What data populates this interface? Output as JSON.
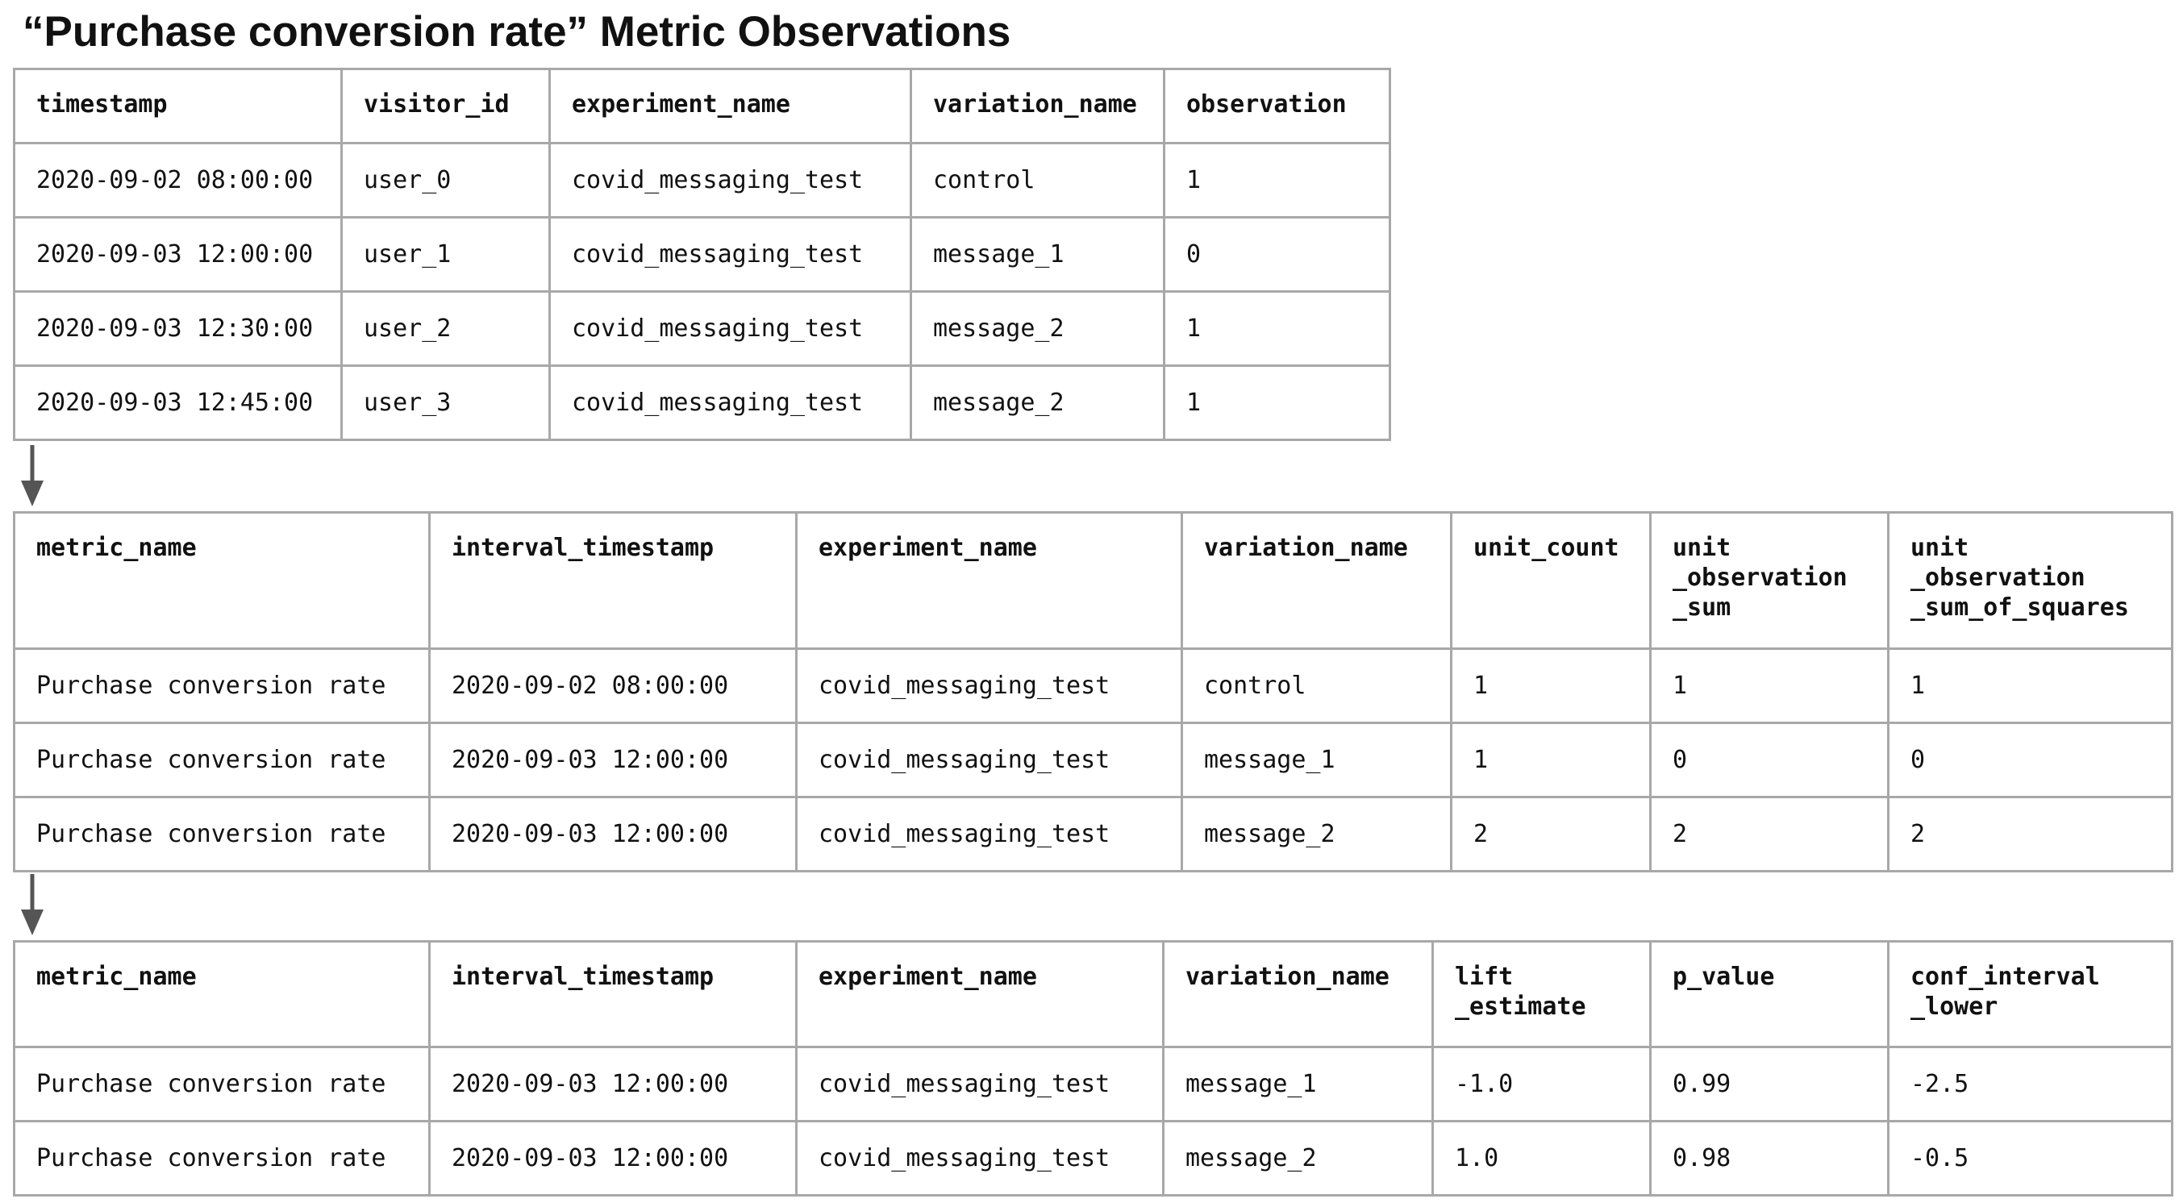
{
  "title": "“Purchase conversion rate” Metric Observations",
  "colors": {
    "border": "#a8a8a8",
    "arrow": "#555555",
    "text": "#111111"
  },
  "icons": [
    "down-arrow-icon"
  ],
  "observations_table": {
    "columns": [
      "timestamp",
      "visitor_id",
      "experiment_name",
      "variation_name",
      "observation"
    ],
    "rows": [
      [
        "2020-09-02 08:00:00",
        "user_0",
        "covid_messaging_test",
        "control",
        "1"
      ],
      [
        "2020-09-03 12:00:00",
        "user_1",
        "covid_messaging_test",
        "message_1",
        "0"
      ],
      [
        "2020-09-03 12:30:00",
        "user_2",
        "covid_messaging_test",
        "message_2",
        "1"
      ],
      [
        "2020-09-03 12:45:00",
        "user_3",
        "covid_messaging_test",
        "message_2",
        "1"
      ]
    ]
  },
  "aggregates_table": {
    "columns": [
      "metric_name",
      "interval_timestamp",
      "experiment_name",
      "variation_name",
      "unit_count",
      "unit\n_observation\n_sum",
      "unit\n_observation\n_sum_of_squares"
    ],
    "rows": [
      [
        "Purchase conversion rate",
        "2020-09-02 08:00:00",
        "covid_messaging_test",
        "control",
        "1",
        "1",
        "1"
      ],
      [
        "Purchase conversion rate",
        "2020-09-03 12:00:00",
        "covid_messaging_test",
        "message_1",
        "1",
        "0",
        "0"
      ],
      [
        "Purchase conversion rate",
        "2020-09-03 12:00:00",
        "covid_messaging_test",
        "message_2",
        "2",
        "2",
        "2"
      ]
    ]
  },
  "results_table": {
    "columns": [
      "metric_name",
      "interval_timestamp",
      "experiment_name",
      "variation_name",
      "lift\n_estimate",
      "p_value",
      "conf_interval\n_lower"
    ],
    "rows": [
      [
        "Purchase conversion rate",
        "2020-09-03 12:00:00",
        "covid_messaging_test",
        "message_1",
        "-1.0",
        "0.99",
        "-2.5"
      ],
      [
        "Purchase conversion rate",
        "2020-09-03 12:00:00",
        "covid_messaging_test",
        "message_2",
        "1.0",
        "0.98",
        "-0.5"
      ]
    ]
  }
}
